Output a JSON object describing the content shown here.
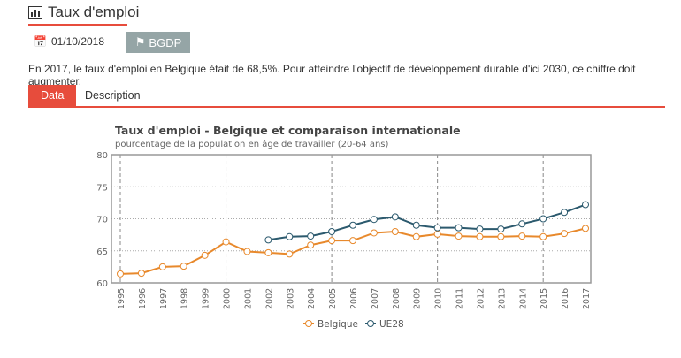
{
  "header": {
    "title": "Taux d'emploi",
    "icon": "bar-chart-icon",
    "date": "01/10/2018",
    "date_icon": "calendar-icon",
    "tag": "BGDP",
    "tag_icon": "tag-icon"
  },
  "description": "En 2017, le taux d'emploi en Belgique était de 68,5%. Pour atteindre l'objectif de développement durable d'ici 2030, ce chiffre doit augmenter.",
  "tabs": [
    {
      "label": "Data",
      "active": true
    },
    {
      "label": "Description",
      "active": false
    }
  ],
  "colors": {
    "accent": "#e74c3c",
    "belgique": "#e8892c",
    "ue28": "#2c5a6e"
  },
  "chart_data": {
    "type": "line",
    "title": "Taux d'emploi - Belgique et comparaison internationale",
    "subtitle": "pourcentage de la population en âge de travailler (20-64 ans)",
    "x": [
      "1995",
      "1996",
      "1997",
      "1998",
      "1999",
      "2000",
      "2001",
      "2002",
      "2003",
      "2004",
      "2005",
      "2006",
      "2007",
      "2008",
      "2009",
      "2010",
      "2011",
      "2012",
      "2013",
      "2014",
      "2015",
      "2016",
      "2017"
    ],
    "yticks": [
      "60",
      "65",
      "70",
      "75",
      "80"
    ],
    "ylim": [
      60,
      80
    ],
    "legend_position": "bottom",
    "series": [
      {
        "name": "Belgique",
        "values": [
          61.4,
          61.5,
          62.5,
          62.6,
          64.3,
          66.4,
          64.9,
          64.7,
          64.5,
          65.9,
          66.6,
          66.6,
          67.8,
          68.0,
          67.2,
          67.6,
          67.3,
          67.2,
          67.2,
          67.3,
          67.2,
          67.7,
          68.5
        ]
      },
      {
        "name": "UE28",
        "values": [
          null,
          null,
          null,
          null,
          null,
          null,
          null,
          66.7,
          67.2,
          67.3,
          68.0,
          69.0,
          69.9,
          70.3,
          69.0,
          68.6,
          68.6,
          68.4,
          68.4,
          69.2,
          70.0,
          71.0,
          72.2
        ]
      }
    ]
  }
}
